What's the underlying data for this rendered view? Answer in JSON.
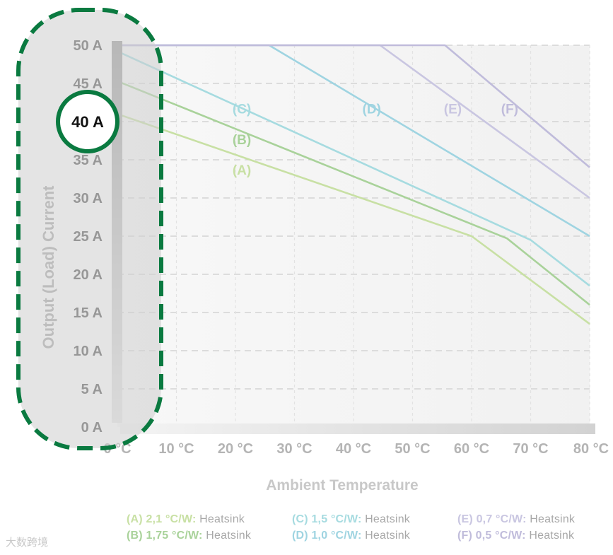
{
  "chart_data": {
    "type": "line",
    "xlabel": "Ambient Temperature",
    "ylabel": "Output (Load) Current",
    "xlim": [
      0,
      80
    ],
    "ylim": [
      0,
      50
    ],
    "x_ticks": [
      "0 °C",
      "10 °C",
      "20 °C",
      "30 °C",
      "40 °C",
      "50 °C",
      "60 °C",
      "70 °C",
      "80 °C"
    ],
    "y_ticks": [
      "0 A",
      "5 A",
      "10 A",
      "15 A",
      "20 A",
      "25 A",
      "30 A",
      "35 A",
      "40 A",
      "45 A",
      "50 A"
    ],
    "highlighted_tick": "40 A",
    "grid": true,
    "series": [
      {
        "name": "(A)",
        "color": "#c8e0a4",
        "label_at": [
          19.5,
          33.7
        ],
        "x": [
          0,
          60,
          80
        ],
        "y": [
          41,
          25,
          13.5
        ]
      },
      {
        "name": "(B)",
        "color": "#a9d29a",
        "label_at": [
          19.5,
          37.7
        ],
        "x": [
          0,
          66,
          80
        ],
        "y": [
          45.3,
          24.7,
          16
        ]
      },
      {
        "name": "(C)",
        "color": "#a6dbe0",
        "label_at": [
          19.5,
          41.7
        ],
        "x": [
          0,
          70,
          80
        ],
        "y": [
          49.2,
          24.5,
          18.5
        ]
      },
      {
        "name": "(D)",
        "color": "#9fd4e1",
        "label_at": [
          41.5,
          41.7
        ],
        "x": [
          0,
          25.7,
          80
        ],
        "y": [
          50,
          50,
          25
        ]
      },
      {
        "name": "(E)",
        "color": "#c9c6e1",
        "label_at": [
          55.3,
          41.7
        ],
        "x": [
          0,
          44.5,
          80
        ],
        "y": [
          50,
          50,
          30
        ]
      },
      {
        "name": "(F)",
        "color": "#c0bcdb",
        "label_at": [
          65,
          41.7
        ],
        "x": [
          0,
          55.5,
          80
        ],
        "y": [
          50,
          50,
          34
        ]
      }
    ]
  },
  "legend": [
    {
      "code": "(A) 2,1 °C/W:",
      "desc": "Heatsink",
      "color": "#c8e0a4"
    },
    {
      "code": "(B) 1,75 °C/W:",
      "desc": "Heatsink",
      "color": "#a9d29a"
    },
    {
      "code": "(C) 1,5 °C/W:",
      "desc": "Heatsink",
      "color": "#a6dbe0"
    },
    {
      "code": "(D) 1,0 °C/W:",
      "desc": "Heatsink",
      "color": "#9fd4e1"
    },
    {
      "code": "(E) 0,7 °C/W:",
      "desc": "Heatsink",
      "color": "#c9c6e1"
    },
    {
      "code": "(F) 0,5 °C/W:",
      "desc": "Heatsink",
      "color": "#c0bcdb"
    }
  ],
  "watermark": "大数跨境",
  "colors": {
    "highlight": "#0a7a40",
    "tick_text": "#555555",
    "axis_label": "#c4c4c4"
  }
}
